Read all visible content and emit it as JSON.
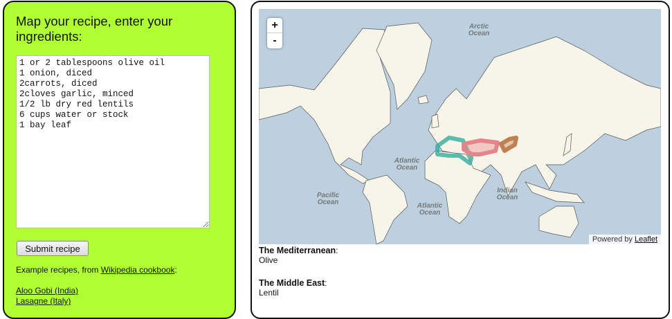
{
  "left": {
    "title": "Map your recipe, enter your ingredients:",
    "textarea_value": "1 or 2 tablespoons olive oil\n1 onion, diced\n2carrots, diced\n2cloves garlic, minced\n1/2 lb dry red lentils\n6 cups water or stock\n1 bay leaf",
    "submit_label": "Submit recipe",
    "examples_prefix": "Example recipes, from ",
    "examples_link": "Wikipedia cookbook",
    "examples_suffix": ":",
    "recipes": [
      "Aloo Gobi (India)",
      "Lasagne (Italy)"
    ],
    "panel_color": "#b0ff33"
  },
  "map": {
    "zoom_in": "+",
    "zoom_out": "-",
    "attribution_prefix": "Powered by ",
    "attribution_link": "Leaflet",
    "oceans": [
      [
        "Arctic",
        "Ocean"
      ],
      [
        "Atlantic",
        "Ocean"
      ],
      [
        "Pacific",
        "Ocean"
      ],
      [
        "Atlantic",
        "Ocean"
      ],
      [
        "Indian",
        "Ocean"
      ]
    ],
    "region_colors": {
      "mediterranean": "#2aa89a",
      "middle_east": "#e0606a",
      "central_asia": "#b05a20"
    }
  },
  "results": [
    {
      "region": "The Mediterranean",
      "ingredient": "Olive"
    },
    {
      "region": "The Middle East",
      "ingredient": "Lentil"
    }
  ]
}
